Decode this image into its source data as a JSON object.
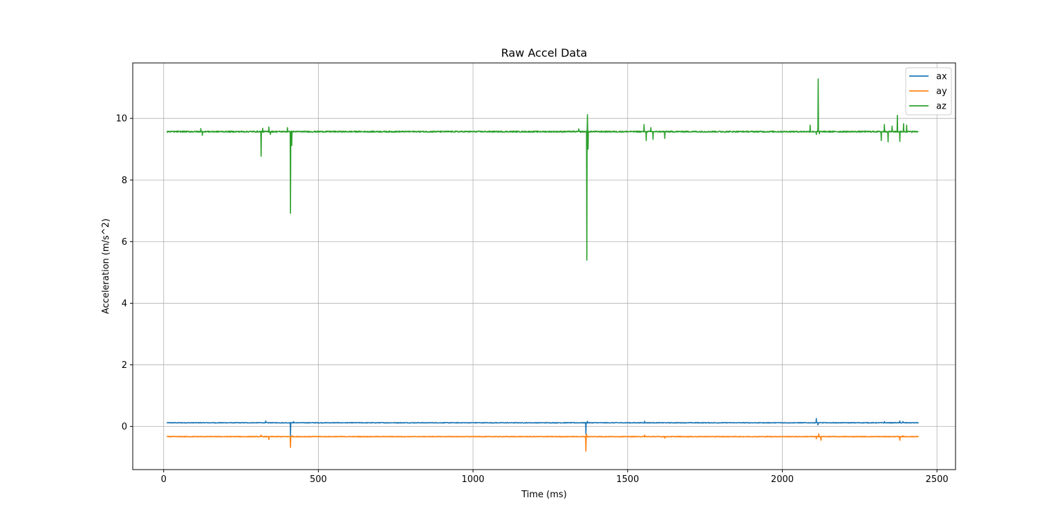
{
  "chart_data": {
    "type": "line",
    "title": "Raw Accel Data",
    "xlabel": "Time (ms)",
    "ylabel": "Acceleration (m/s^2)",
    "xlim": [
      -100,
      2560
    ],
    "ylim": [
      -1.4,
      11.8
    ],
    "xticks": [
      0,
      500,
      1000,
      1500,
      2000,
      2500
    ],
    "yticks": [
      0,
      2,
      4,
      6,
      8,
      10
    ],
    "grid": true,
    "legend_position": "top-right",
    "x_range": [
      10,
      2440
    ],
    "series": [
      {
        "name": "ax",
        "color": "#1f77b4",
        "baseline": 0.12,
        "noise": 0.01,
        "events": [
          [
            330,
            0.18
          ],
          [
            410,
            -0.3
          ],
          [
            420,
            0.16
          ],
          [
            1365,
            -0.25
          ],
          [
            1370,
            0.17
          ],
          [
            1555,
            0.17
          ],
          [
            2110,
            0.26
          ],
          [
            2115,
            0.05
          ],
          [
            2330,
            0.16
          ],
          [
            2380,
            0.18
          ],
          [
            2390,
            0.16
          ]
        ]
      },
      {
        "name": "ay",
        "color": "#ff7f0e",
        "baseline": -0.33,
        "noise": 0.01,
        "events": [
          [
            315,
            -0.28
          ],
          [
            340,
            -0.42
          ],
          [
            410,
            -0.68
          ],
          [
            415,
            -0.3
          ],
          [
            1365,
            -0.8
          ],
          [
            1367,
            -0.25
          ],
          [
            1555,
            -0.28
          ],
          [
            1620,
            -0.38
          ],
          [
            2110,
            -0.4
          ],
          [
            2118,
            -0.24
          ],
          [
            2125,
            -0.45
          ],
          [
            2380,
            -0.45
          ],
          [
            2390,
            -0.3
          ]
        ]
      },
      {
        "name": "az",
        "color": "#2ca02c",
        "baseline": 9.57,
        "noise": 0.02,
        "events": [
          [
            120,
            9.67
          ],
          [
            125,
            9.45
          ],
          [
            315,
            8.77
          ],
          [
            320,
            9.68
          ],
          [
            340,
            9.72
          ],
          [
            345,
            9.48
          ],
          [
            400,
            9.7
          ],
          [
            410,
            6.92
          ],
          [
            414,
            9.12
          ],
          [
            1342,
            9.66
          ],
          [
            1368,
            5.4
          ],
          [
            1370,
            10.12
          ],
          [
            1372,
            9.0
          ],
          [
            1553,
            9.8
          ],
          [
            1560,
            9.28
          ],
          [
            1575,
            9.7
          ],
          [
            1582,
            9.32
          ],
          [
            1620,
            9.35
          ],
          [
            2090,
            9.78
          ],
          [
            2110,
            9.48
          ],
          [
            2116,
            11.28
          ],
          [
            2120,
            9.5
          ],
          [
            2320,
            9.28
          ],
          [
            2330,
            9.8
          ],
          [
            2342,
            9.24
          ],
          [
            2355,
            9.75
          ],
          [
            2372,
            10.1
          ],
          [
            2380,
            9.25
          ],
          [
            2392,
            9.83
          ],
          [
            2402,
            9.78
          ]
        ]
      }
    ]
  }
}
